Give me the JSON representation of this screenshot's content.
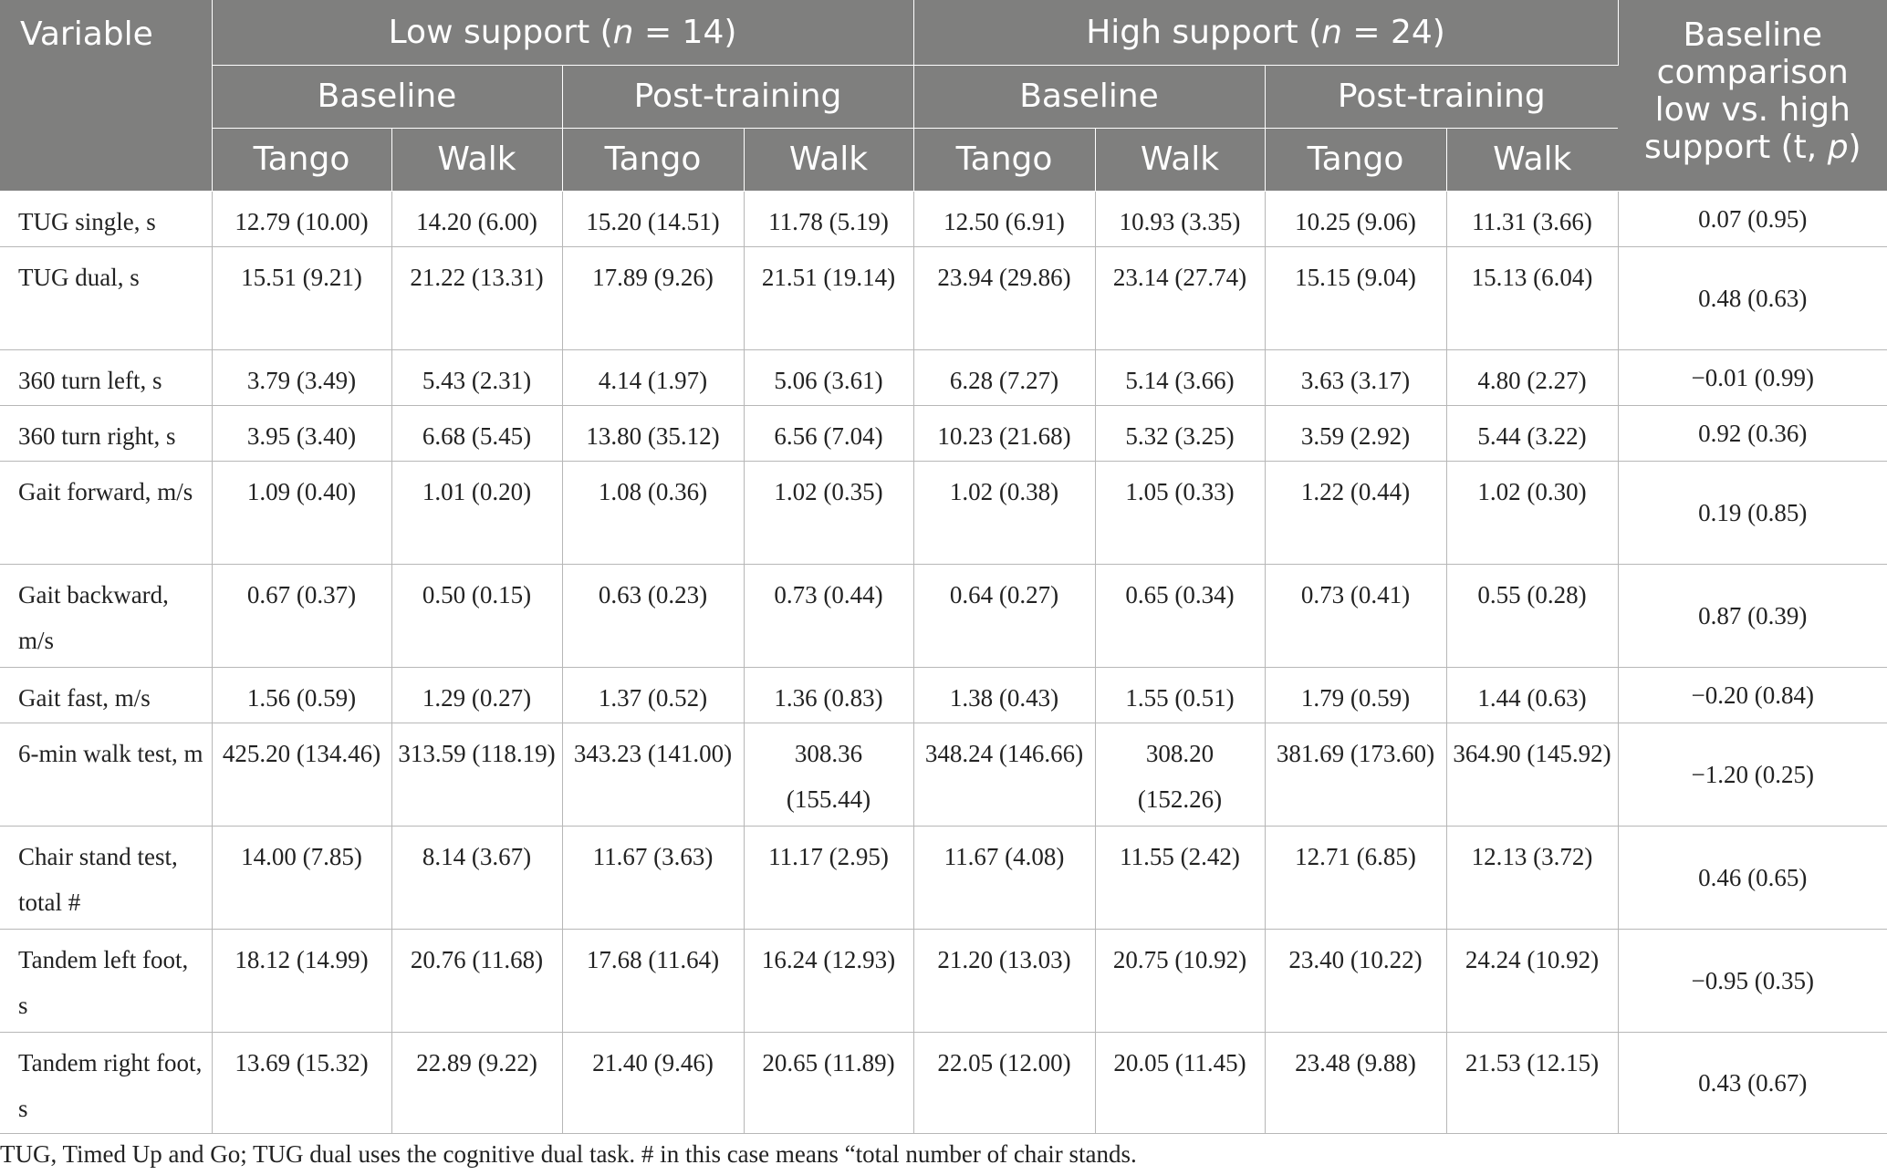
{
  "header": {
    "variable": "Variable",
    "low_support_prefix": "Low support (",
    "low_support_n": "n",
    "low_support_suffix": " = 14)",
    "high_support_prefix": "High support (",
    "high_support_n": "n",
    "high_support_suffix": " = 24)",
    "comparison_line1": "Baseline",
    "comparison_line2": "comparison",
    "comparison_line3": "low vs. high",
    "comparison_line4_prefix": "support (t, ",
    "comparison_line4_p": "p",
    "comparison_line4_suffix": ")",
    "baseline": "Baseline",
    "post_training": "Post-training",
    "tango": "Tango",
    "walk": "Walk"
  },
  "rows": [
    {
      "variable": "TUG single, s",
      "cells": [
        "12.79 (10.00)",
        "14.20 (6.00)",
        "15.20 (14.51)",
        "11.78 (5.19)",
        "12.50 (6.91)",
        "10.93 (3.35)",
        "10.25 (9.06)",
        "11.31 (3.66)"
      ],
      "comparison": "0.07 (0.95)"
    },
    {
      "variable": "TUG dual, s",
      "cells": [
        "15.51 (9.21)",
        "21.22 (13.31)",
        "17.89 (9.26)",
        "21.51 (19.14)",
        "23.94 (29.86)",
        "23.14 (27.74)",
        "15.15 (9.04)",
        "15.13 (6.04)"
      ],
      "comparison": "0.48 (0.63)"
    },
    {
      "variable": "360 turn left, s",
      "cells": [
        "3.79 (3.49)",
        "5.43 (2.31)",
        "4.14 (1.97)",
        "5.06 (3.61)",
        "6.28 (7.27)",
        "5.14 (3.66)",
        "3.63 (3.17)",
        "4.80 (2.27)"
      ],
      "comparison": "−0.01 (0.99)"
    },
    {
      "variable": "360 turn right, s",
      "cells": [
        "3.95 (3.40)",
        "6.68 (5.45)",
        "13.80 (35.12)",
        "6.56 (7.04)",
        "10.23 (21.68)",
        "5.32 (3.25)",
        "3.59 (2.92)",
        "5.44 (3.22)"
      ],
      "comparison": "0.92 (0.36)"
    },
    {
      "variable": "Gait forward, m/s",
      "cells": [
        "1.09 (0.40)",
        "1.01 (0.20)",
        "1.08 (0.36)",
        "1.02 (0.35)",
        "1.02 (0.38)",
        "1.05 (0.33)",
        "1.22 (0.44)",
        "1.02 (0.30)"
      ],
      "comparison": "0.19 (0.85)"
    },
    {
      "variable": "Gait backward, m/s",
      "cells": [
        "0.67 (0.37)",
        "0.50 (0.15)",
        "0.63 (0.23)",
        "0.73 (0.44)",
        "0.64 (0.27)",
        "0.65 (0.34)",
        "0.73 (0.41)",
        "0.55 (0.28)"
      ],
      "comparison": "0.87 (0.39)"
    },
    {
      "variable": "Gait fast, m/s",
      "cells": [
        "1.56 (0.59)",
        "1.29 (0.27)",
        "1.37 (0.52)",
        "1.36 (0.83)",
        "1.38 (0.43)",
        "1.55 (0.51)",
        "1.79 (0.59)",
        "1.44 (0.63)"
      ],
      "comparison": "−0.20 (0.84)"
    },
    {
      "variable": "6-min walk test, m",
      "cells": [
        "425.20 (134.46)",
        "313.59 (118.19)",
        "343.23 (141.00)",
        "308.36 (155.44)",
        "348.24 (146.66)",
        "308.20 (152.26)",
        "381.69 (173.60)",
        "364.90 (145.92)"
      ],
      "comparison": "−1.20 (0.25)"
    },
    {
      "variable": "Chair stand test, total #",
      "cells": [
        "14.00 (7.85)",
        "8.14 (3.67)",
        "11.67 (3.63)",
        "11.17 (2.95)",
        "11.67 (4.08)",
        "11.55 (2.42)",
        "12.71 (6.85)",
        "12.13 (3.72)"
      ],
      "comparison": "0.46 (0.65)"
    },
    {
      "variable": "Tandem left foot, s",
      "cells": [
        "18.12 (14.99)",
        "20.76 (11.68)",
        "17.68 (11.64)",
        "16.24 (12.93)",
        "21.20 (13.03)",
        "20.75 (10.92)",
        "23.40 (10.22)",
        "24.24 (10.92)"
      ],
      "comparison": "−0.95 (0.35)"
    },
    {
      "variable": "Tandem right foot, s",
      "cells": [
        "13.69 (15.32)",
        "22.89 (9.22)",
        "21.40 (9.46)",
        "20.65 (11.89)",
        "22.05 (12.00)",
        "20.05 (11.45)",
        "23.48 (9.88)",
        "21.53 (12.15)"
      ],
      "comparison": "0.43 (0.67)"
    }
  ],
  "footnote": "TUG, Timed Up and Go; TUG dual uses the cognitive dual task. # in this case means “total number of chair stands."
}
